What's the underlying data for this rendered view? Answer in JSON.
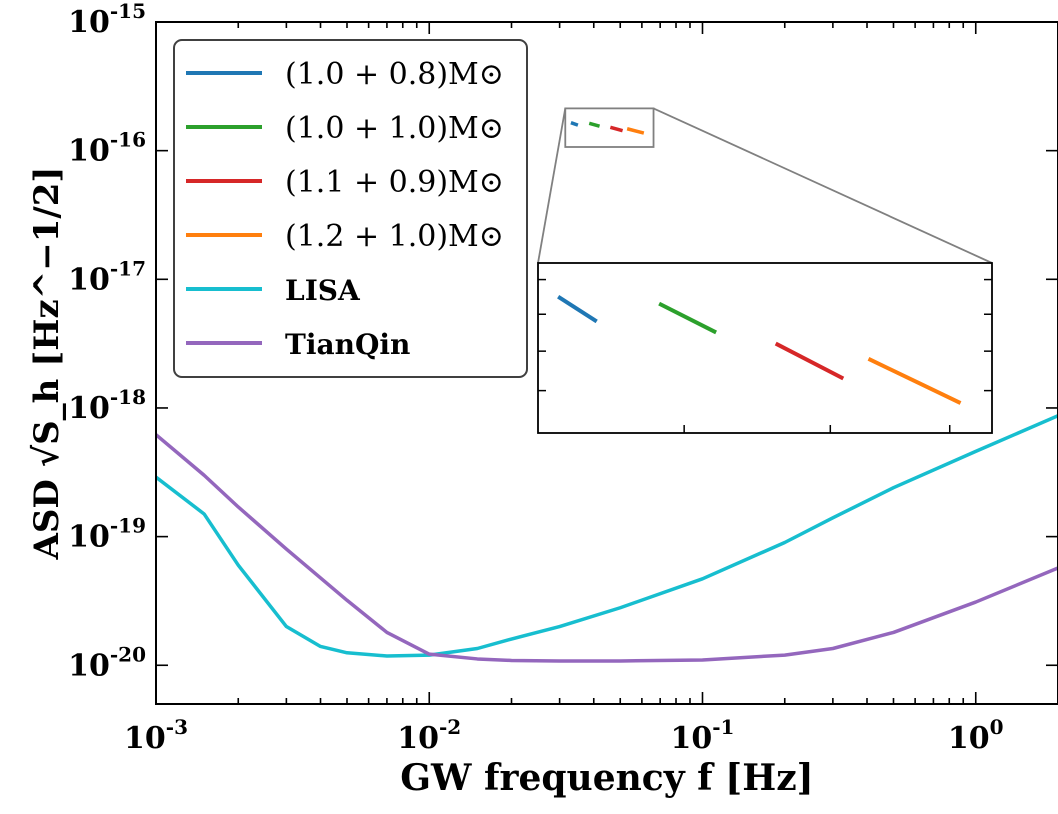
{
  "chart_data": {
    "type": "line",
    "title": "",
    "xlabel": "GW frequency f [Hz]",
    "ylabel": "ASD √S_h [Hz^−1/2]",
    "xscale": "log",
    "yscale": "log",
    "xlim": [
      0.001,
      2
    ],
    "ylim": [
      5e-21,
      1e-15
    ],
    "grid": false,
    "legend_position": "top-left",
    "x_tick_labels": [
      {
        "value": 0.001,
        "base": "10",
        "exp": "-3"
      },
      {
        "value": 0.01,
        "base": "10",
        "exp": "-2"
      },
      {
        "value": 0.1,
        "base": "10",
        "exp": "-1"
      },
      {
        "value": 1,
        "base": "10",
        "exp": "0"
      }
    ],
    "y_tick_labels": [
      {
        "value": 1e-20,
        "base": "10",
        "exp": "-20"
      },
      {
        "value": 1e-19,
        "base": "10",
        "exp": "-19"
      },
      {
        "value": 1e-18,
        "base": "10",
        "exp": "-18"
      },
      {
        "value": 1e-17,
        "base": "10",
        "exp": "-17"
      },
      {
        "value": 1e-16,
        "base": "10",
        "exp": "-16"
      },
      {
        "value": 1e-15,
        "base": "10",
        "exp": "-15"
      }
    ],
    "series": [
      {
        "name": "(1.0 + 0.8)M⊙",
        "color": "#1f77b4",
        "style": "segment",
        "points": [
          [
            0.033,
            1.65e-16
          ],
          [
            0.035,
            1.58e-16
          ]
        ]
      },
      {
        "name": "(1.0 + 1.0)M⊙",
        "color": "#2ca02c",
        "style": "segment",
        "points": [
          [
            0.0385,
            1.63e-16
          ],
          [
            0.042,
            1.55e-16
          ]
        ]
      },
      {
        "name": "(1.1 + 0.9)M⊙",
        "color": "#d62728",
        "style": "segment",
        "points": [
          [
            0.046,
            1.52e-16
          ],
          [
            0.051,
            1.43e-16
          ]
        ]
      },
      {
        "name": "(1.2 + 1.0)M⊙",
        "color": "#ff7f0e",
        "style": "segment",
        "points": [
          [
            0.053,
            1.48e-16
          ],
          [
            0.061,
            1.37e-16
          ]
        ]
      },
      {
        "name": "LISA",
        "color": "#17becf",
        "style": "curve",
        "points": [
          [
            0.001,
            2.9e-19
          ],
          [
            0.0015,
            1.5e-19
          ],
          [
            0.002,
            6e-20
          ],
          [
            0.003,
            2e-20
          ],
          [
            0.004,
            1.4e-20
          ],
          [
            0.005,
            1.25e-20
          ],
          [
            0.007,
            1.18e-20
          ],
          [
            0.01,
            1.2e-20
          ],
          [
            0.015,
            1.35e-20
          ],
          [
            0.02,
            1.6e-20
          ],
          [
            0.03,
            2e-20
          ],
          [
            0.05,
            2.8e-20
          ],
          [
            0.1,
            4.7e-20
          ],
          [
            0.2,
            9e-20
          ],
          [
            0.3,
            1.4e-19
          ],
          [
            0.5,
            2.4e-19
          ],
          [
            1.0,
            4.6e-19
          ],
          [
            2.0,
            8.7e-19
          ]
        ]
      },
      {
        "name": "TianQin",
        "color": "#9467bd",
        "style": "curve",
        "points": [
          [
            0.001,
            6.2e-19
          ],
          [
            0.0015,
            3e-19
          ],
          [
            0.002,
            1.7e-19
          ],
          [
            0.003,
            8e-20
          ],
          [
            0.005,
            3.2e-20
          ],
          [
            0.007,
            1.8e-20
          ],
          [
            0.01,
            1.22e-20
          ],
          [
            0.015,
            1.12e-20
          ],
          [
            0.02,
            1.09e-20
          ],
          [
            0.03,
            1.08e-20
          ],
          [
            0.05,
            1.08e-20
          ],
          [
            0.1,
            1.1e-20
          ],
          [
            0.2,
            1.2e-20
          ],
          [
            0.3,
            1.35e-20
          ],
          [
            0.5,
            1.8e-20
          ],
          [
            1.0,
            3.1e-20
          ],
          [
            2.0,
            5.7e-20
          ]
        ]
      }
    ],
    "inset": {
      "xlim": [
        0.032,
        0.064
      ],
      "ylim": [
        1.3e-16,
        1.75e-16
      ],
      "bordered": true
    }
  }
}
